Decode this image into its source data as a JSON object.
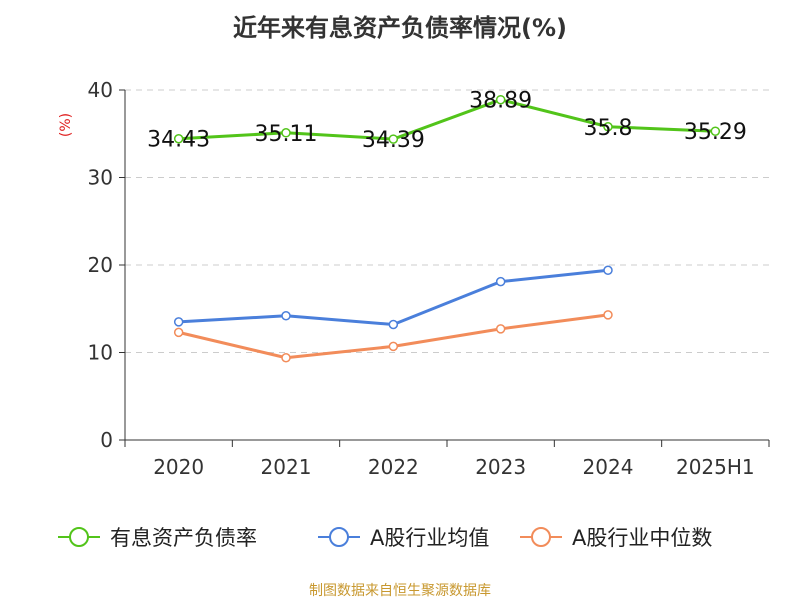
{
  "chart_data": {
    "type": "line",
    "title": "近年来有息资产负债率情况(%)",
    "ylabel": "(%)",
    "xlabel": "",
    "ylim": [
      0,
      40
    ],
    "yticks": [
      0,
      10,
      20,
      30,
      40
    ],
    "categories": [
      "2020",
      "2021",
      "2022",
      "2023",
      "2024",
      "2025H1"
    ],
    "grid": true,
    "legend_position": "bottom",
    "series": [
      {
        "name": "有息资产负债率",
        "color": "#52c41a",
        "values": [
          34.43,
          35.11,
          34.39,
          38.89,
          35.8,
          35.29
        ],
        "labels": [
          "34.43",
          "35.11",
          "34.39",
          "38.89",
          "35.8",
          "35.29"
        ]
      },
      {
        "name": "A股行业均值",
        "color": "#4a7fdb",
        "values": [
          13.5,
          14.2,
          13.2,
          18.1,
          19.4,
          null
        ]
      },
      {
        "name": "A股行业中位数",
        "color": "#f28c5a",
        "values": [
          12.3,
          9.4,
          10.7,
          12.7,
          14.3,
          null
        ]
      }
    ],
    "source": "制图数据来自恒生聚源数据库"
  }
}
